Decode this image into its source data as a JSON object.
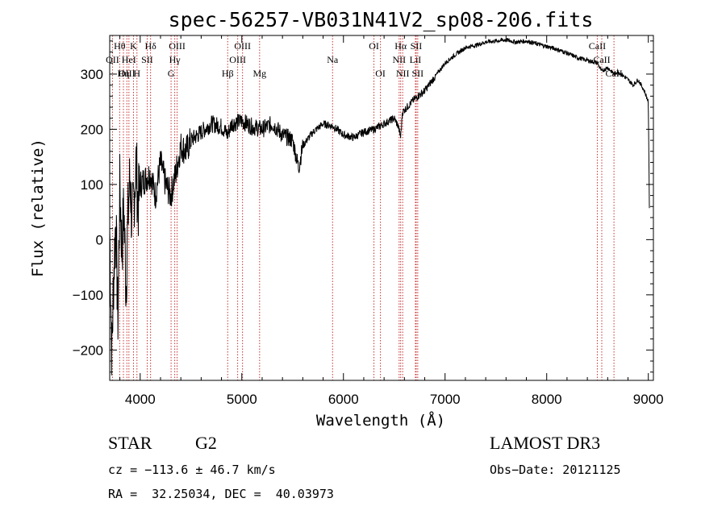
{
  "chart_data": {
    "type": "line",
    "title": "spec-56257-VB031N41V2_sp08-206.fits",
    "xlabel": "Wavelength (Å)",
    "ylabel": "Flux (relative)",
    "xlim": [
      3700,
      9050
    ],
    "ylim": [
      -255,
      370
    ],
    "x_ticks": [
      4000,
      5000,
      6000,
      7000,
      8000,
      9000
    ],
    "y_ticks": [
      -200,
      -100,
      0,
      100,
      200,
      300
    ],
    "x_tick_labels": [
      "4000",
      "5000",
      "6000",
      "7000",
      "8000",
      "9000"
    ],
    "y_tick_labels": [
      "−200",
      "−100",
      "0",
      "100",
      "200",
      "300"
    ],
    "series": [
      {
        "name": "flux",
        "x": [
          3700,
          3720,
          3740,
          3760,
          3780,
          3800,
          3820,
          3840,
          3860,
          3880,
          3900,
          3920,
          3940,
          3960,
          3980,
          4000,
          4050,
          4100,
          4150,
          4200,
          4250,
          4300,
          4350,
          4400,
          4450,
          4500,
          4600,
          4700,
          4800,
          4860,
          4900,
          5000,
          5100,
          5200,
          5300,
          5400,
          5500,
          5560,
          5600,
          5700,
          5800,
          5900,
          6000,
          6100,
          6200,
          6300,
          6400,
          6500,
          6540,
          6563,
          6580,
          6600,
          6700,
          6800,
          6900,
          7000,
          7100,
          7200,
          7300,
          7400,
          7500,
          7600,
          7700,
          7800,
          7900,
          8000,
          8100,
          8200,
          8300,
          8400,
          8500,
          8540,
          8600,
          8662,
          8700,
          8800,
          8850,
          8900,
          8960,
          9000,
          9010
        ],
        "values": [
          20,
          -210,
          -60,
          40,
          -150,
          100,
          -20,
          60,
          -90,
          40,
          120,
          20,
          80,
          140,
          60,
          100,
          110,
          120,
          80,
          140,
          100,
          80,
          120,
          170,
          160,
          180,
          195,
          210,
          205,
          190,
          210,
          215,
          205,
          200,
          210,
          190,
          180,
          130,
          170,
          195,
          210,
          205,
          190,
          185,
          195,
          200,
          210,
          220,
          205,
          185,
          230,
          235,
          255,
          270,
          295,
          320,
          335,
          348,
          352,
          358,
          360,
          362,
          358,
          360,
          355,
          350,
          345,
          338,
          330,
          325,
          320,
          305,
          312,
          300,
          305,
          290,
          280,
          290,
          270,
          250,
          60
        ]
      }
    ],
    "lines": [
      {
        "label": "Hθ",
        "x": 3798,
        "row": 1
      },
      {
        "label": "OII",
        "x": 3727,
        "row": 2
      },
      {
        "label": "OIII",
        "x": 3869,
        "row": 3
      },
      {
        "label": "Hη",
        "x": 3835,
        "row": 3
      },
      {
        "label": "K",
        "x": 3934,
        "row": 1
      },
      {
        "label": "HeI",
        "x": 3889,
        "row": 2
      },
      {
        "label": "H",
        "x": 3968,
        "row": 3
      },
      {
        "label": "SII",
        "x": 4069,
        "row": 2
      },
      {
        "label": "Hδ",
        "x": 4102,
        "row": 1
      },
      {
        "label": "OIII",
        "x": 4363,
        "row": 1
      },
      {
        "label": "Hγ",
        "x": 4340,
        "row": 2
      },
      {
        "label": "G",
        "x": 4304,
        "row": 3
      },
      {
        "label": "Hβ",
        "x": 4861,
        "row": 3
      },
      {
        "label": "OIII",
        "x": 5007,
        "row": 1
      },
      {
        "label": "OIII",
        "x": 4959,
        "row": 2
      },
      {
        "label": "Mg",
        "x": 5175,
        "row": 3
      },
      {
        "label": "Na",
        "x": 5893,
        "row": 2
      },
      {
        "label": "OI",
        "x": 6300,
        "row": 1
      },
      {
        "label": "OI",
        "x": 6364,
        "row": 3
      },
      {
        "label": "Hα",
        "x": 6563,
        "row": 1
      },
      {
        "label": "NII",
        "x": 6548,
        "row": 2
      },
      {
        "label": "NII",
        "x": 6583,
        "row": 3
      },
      {
        "label": "SII",
        "x": 6716,
        "row": 1
      },
      {
        "label": "LiI",
        "x": 6708,
        "row": 2
      },
      {
        "label": "SII",
        "x": 6731,
        "row": 3
      },
      {
        "label": "CaII",
        "x": 8498,
        "row": 1
      },
      {
        "label": "CaII",
        "x": 8542,
        "row": 2
      },
      {
        "label": "CaII",
        "x": 8662,
        "row": 3
      }
    ],
    "line_color": "#c83232",
    "trace_color": "#000000"
  },
  "info": {
    "object_class": "STAR",
    "subclass": "G2",
    "survey": "LAMOST DR3",
    "cz": "cz = −113.6 ± 46.7 km/s",
    "obs_date": "Obs−Date: 20121125",
    "coords": "RA =  32.25034, DEC =  40.03973"
  }
}
